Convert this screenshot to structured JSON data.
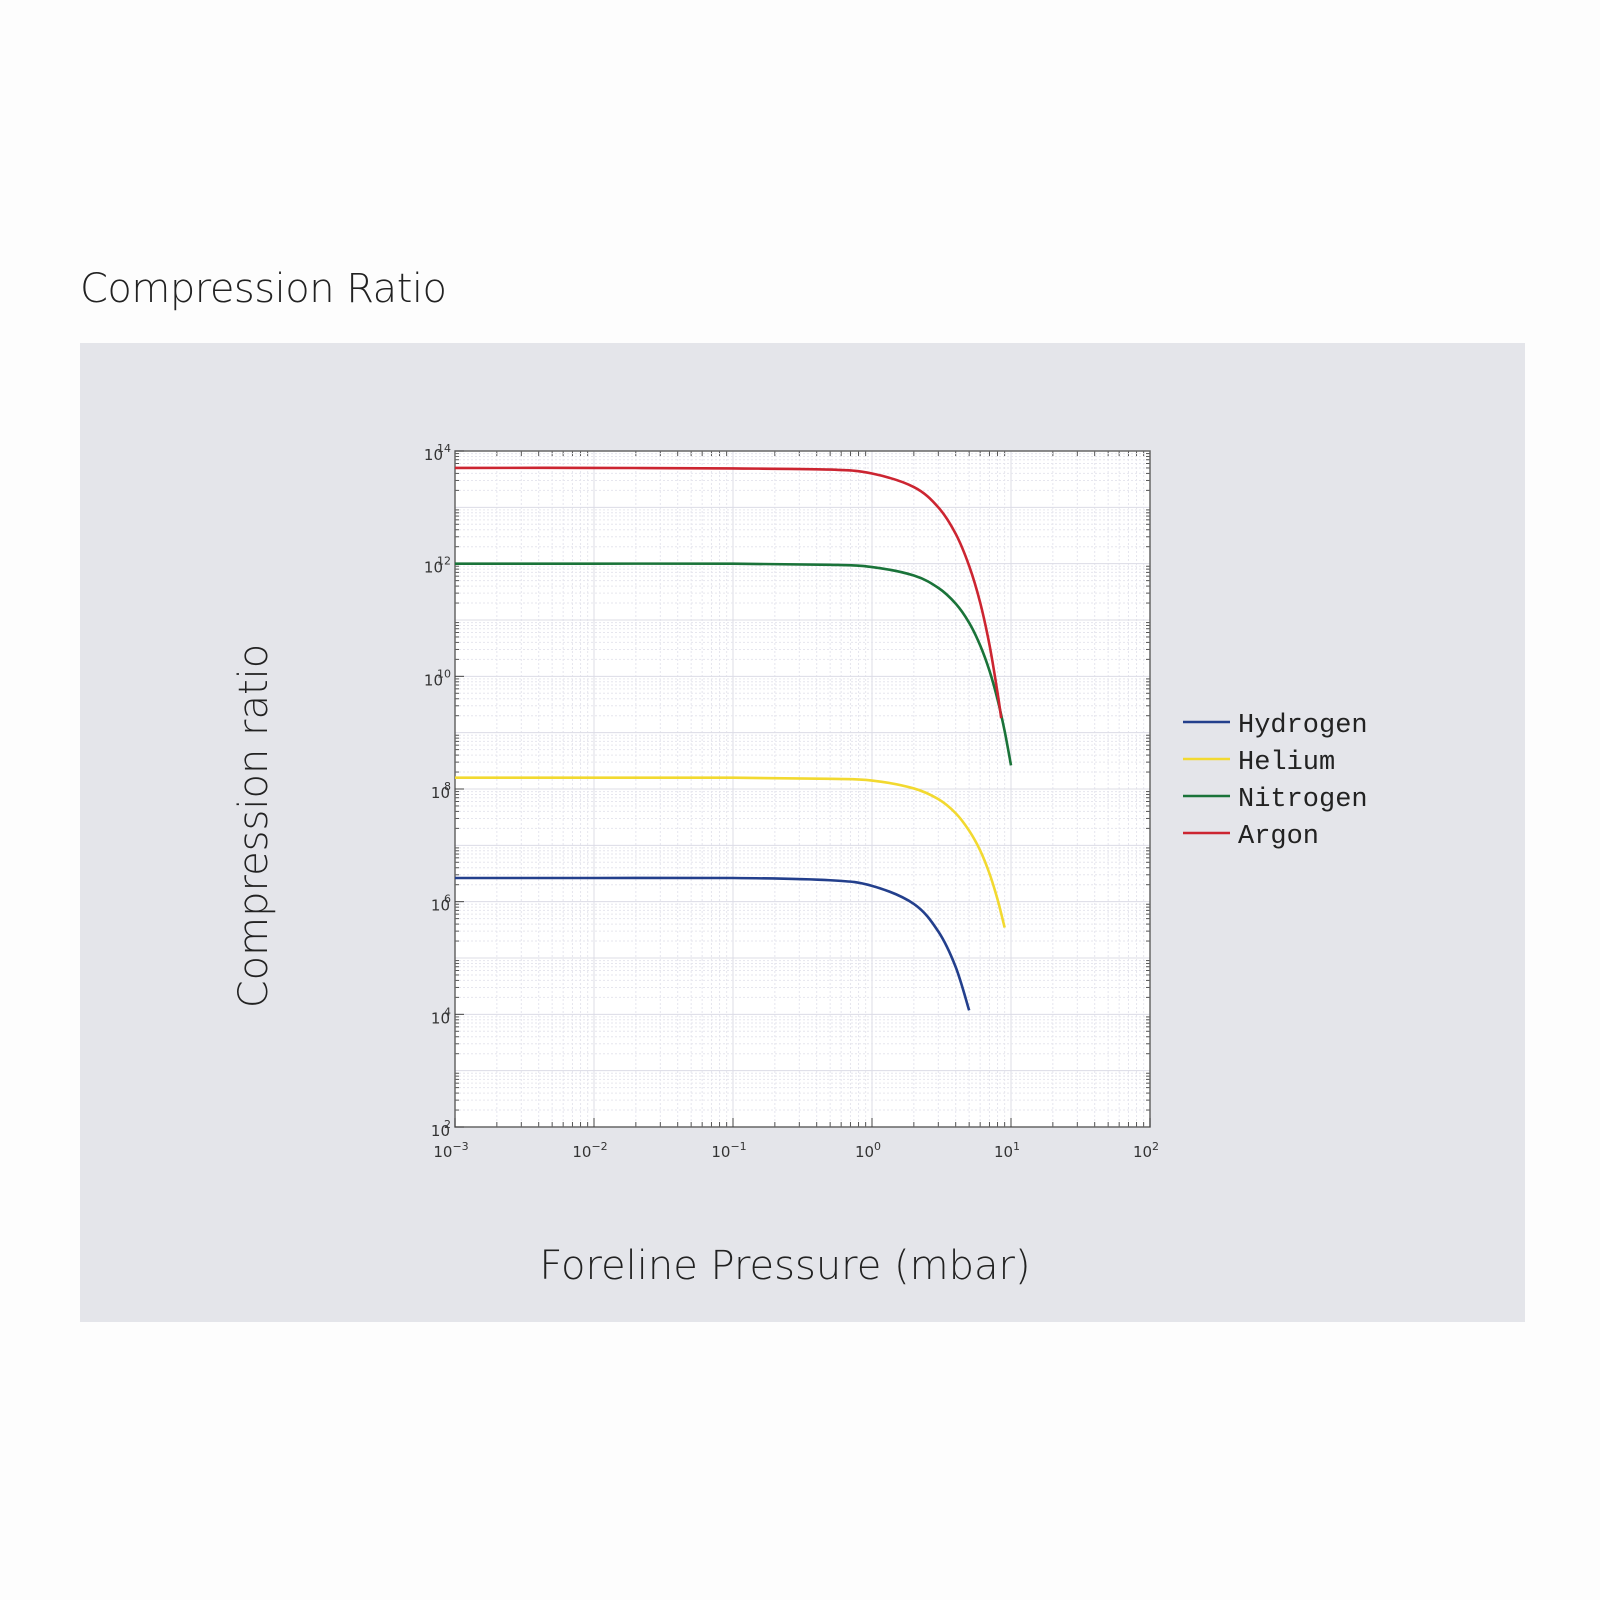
{
  "page_title": "Compression Ratio",
  "chart_data": {
    "type": "line",
    "xscale": "log",
    "yscale": "log",
    "xlabel": "Foreline Pressure (mbar)",
    "ylabel": "Compression ratio",
    "xlim": [
      0.001,
      100
    ],
    "ylim": [
      100,
      100000000000000.0
    ],
    "x_ticks": [
      {
        "base": "10",
        "exp": "−3"
      },
      {
        "base": "10",
        "exp": "−2"
      },
      {
        "base": "10",
        "exp": "−1"
      },
      {
        "base": "10",
        "exp": "0"
      },
      {
        "base": "10",
        "exp": "1"
      },
      {
        "base": "10",
        "exp": "2"
      }
    ],
    "y_ticks": [
      {
        "base": "10",
        "exp": "2"
      },
      {
        "base": "10",
        "exp": "4"
      },
      {
        "base": "10",
        "exp": "6"
      },
      {
        "base": "10",
        "exp": "8"
      },
      {
        "base": "10",
        "exp": "10"
      },
      {
        "base": "10",
        "exp": "12"
      },
      {
        "base": "10",
        "exp": "14"
      }
    ],
    "grid": true,
    "legend_position": "right",
    "series": [
      {
        "name": "Hydrogen",
        "color": "#233f8c",
        "x": [
          0.001,
          0.01,
          0.1,
          0.5,
          1,
          2,
          3,
          4,
          5
        ],
        "log10_y": [
          6.42,
          6.42,
          6.42,
          6.38,
          6.28,
          5.96,
          5.47,
          4.84,
          4.07
        ]
      },
      {
        "name": "Helium",
        "color": "#f2d930",
        "x": [
          0.001,
          0.01,
          0.1,
          0.5,
          1,
          2,
          3,
          4,
          5,
          6,
          7,
          8,
          9
        ],
        "log10_y": [
          8.2,
          8.2,
          8.2,
          8.18,
          8.15,
          8.01,
          7.82,
          7.57,
          7.26,
          6.91,
          6.5,
          6.04,
          5.54
        ]
      },
      {
        "name": "Nitrogen",
        "color": "#1a7339",
        "x": [
          0.001,
          0.01,
          0.1,
          0.5,
          1,
          2,
          3,
          4,
          5,
          6,
          7,
          8,
          9,
          10
        ],
        "log10_y": [
          12.0,
          12.0,
          12.0,
          11.98,
          11.94,
          11.79,
          11.57,
          11.29,
          10.95,
          10.55,
          10.1,
          9.59,
          9.03,
          8.42
        ]
      },
      {
        "name": "Argon",
        "color": "#cc2531",
        "x": [
          0.001,
          0.01,
          0.1,
          0.5,
          1,
          2,
          3,
          4,
          5,
          6,
          7,
          8,
          8.5
        ],
        "log10_y": [
          13.7,
          13.7,
          13.69,
          13.67,
          13.6,
          13.36,
          13.0,
          12.53,
          11.96,
          11.31,
          10.56,
          9.71,
          9.26
        ]
      }
    ]
  }
}
